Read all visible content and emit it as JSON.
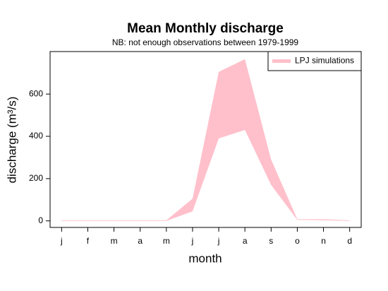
{
  "chart_data": {
    "type": "band",
    "title": "Mean Monthly discharge",
    "subtitle": "NB: not enough observations between 1979-1999",
    "x_label": "month",
    "y_label": "discharge (m³/s)",
    "categories": [
      "j",
      "f",
      "m",
      "a",
      "m",
      "j",
      "j",
      "a",
      "s",
      "o",
      "n",
      "d"
    ],
    "series": [
      {
        "name": "LPJ simulations",
        "color": "#ffc0cb",
        "upper": [
          3,
          3,
          3,
          3,
          3,
          105,
          705,
          765,
          290,
          8,
          8,
          3
        ],
        "lower": [
          0,
          0,
          0,
          0,
          0,
          45,
          390,
          430,
          170,
          5,
          3,
          0
        ]
      }
    ],
    "ylim": [
      -31,
      801
    ],
    "yticks": [
      0,
      200,
      400,
      600
    ],
    "legend": "topright"
  }
}
